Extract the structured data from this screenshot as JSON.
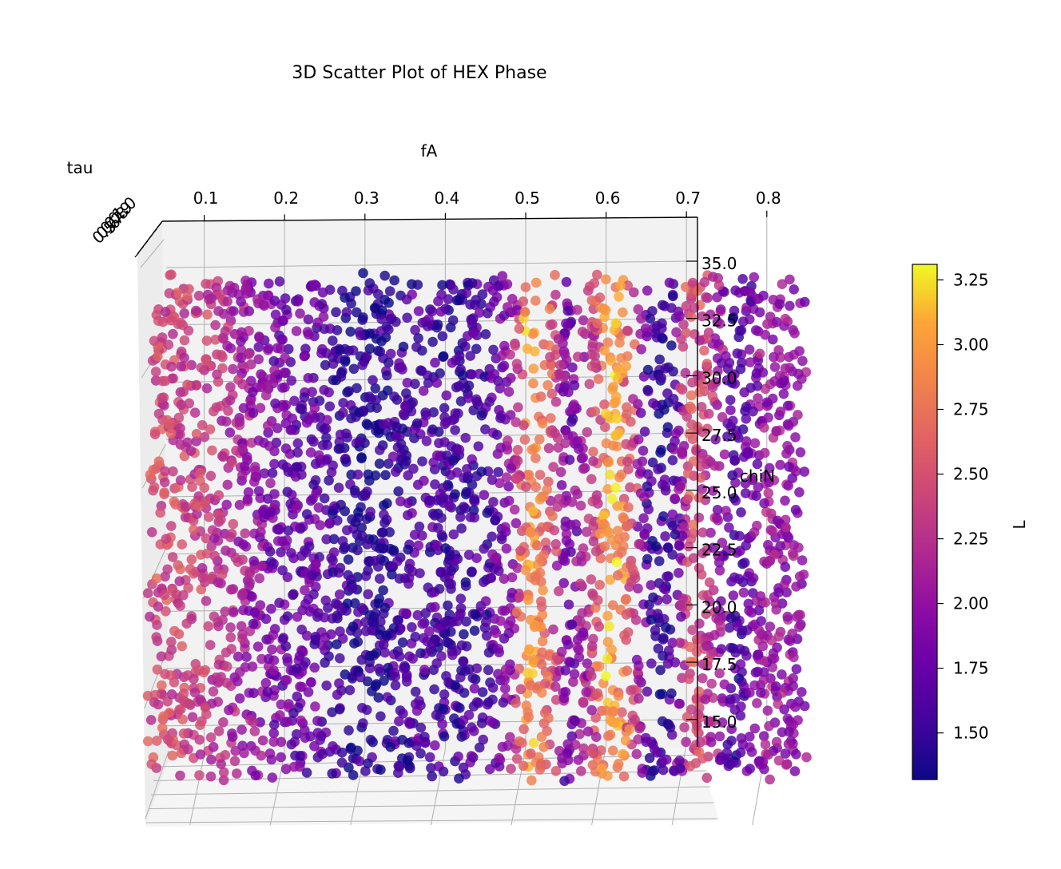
{
  "chart_data": {
    "type": "scatter",
    "projection": "3d",
    "title": "3D Scatter Plot of HEX Phase",
    "xlabel": "fA",
    "ylabel": "tau",
    "zlabel": "chiN",
    "colorbar_label": "L",
    "colormap": "plasma",
    "xlim": [
      0.05,
      0.85
    ],
    "zlim": [
      14.0,
      35.0
    ],
    "x_ticks": [
      "0.1",
      "0.2",
      "0.3",
      "0.4",
      "0.5",
      "0.6",
      "0.7",
      "0.8"
    ],
    "z_ticks": [
      "15.0",
      "17.5",
      "20.0",
      "22.5",
      "25.0",
      "27.5",
      "30.0",
      "32.5",
      "35.0"
    ],
    "y_ticks": [
      "0.5",
      "0.6",
      "0.7",
      "0.8",
      "0.9",
      "1.0"
    ],
    "colorbar_ticks": [
      "1.50",
      "1.75",
      "2.00",
      "2.25",
      "2.50",
      "2.75",
      "3.00",
      "3.25"
    ],
    "colorbar_range": [
      1.32,
      3.31
    ],
    "grid": true,
    "colorbar_placement": "right",
    "point_count": 3500,
    "L_profile_by_fA": [
      {
        "fA": 0.05,
        "L": 2.45
      },
      {
        "fA": 0.1,
        "L": 2.35
      },
      {
        "fA": 0.13,
        "L": 2.25
      },
      {
        "fA": 0.16,
        "L": 2.05
      },
      {
        "fA": 0.2,
        "L": 1.78
      },
      {
        "fA": 0.25,
        "L": 1.72
      },
      {
        "fA": 0.28,
        "L": 1.5
      },
      {
        "fA": 0.32,
        "L": 1.42
      },
      {
        "fA": 0.35,
        "L": 1.55
      },
      {
        "fA": 0.38,
        "L": 1.65
      },
      {
        "fA": 0.42,
        "L": 1.5
      },
      {
        "fA": 0.46,
        "L": 1.62
      },
      {
        "fA": 0.49,
        "L": 2.0
      },
      {
        "fA": 0.51,
        "L": 3.05
      },
      {
        "fA": 0.53,
        "L": 2.7
      },
      {
        "fA": 0.56,
        "L": 1.75
      },
      {
        "fA": 0.59,
        "L": 2.35
      },
      {
        "fA": 0.61,
        "L": 3.1
      },
      {
        "fA": 0.63,
        "L": 2.8
      },
      {
        "fA": 0.66,
        "L": 1.5
      },
      {
        "fA": 0.69,
        "L": 1.55
      },
      {
        "fA": 0.71,
        "L": 2.6
      },
      {
        "fA": 0.74,
        "L": 2.15
      },
      {
        "fA": 0.77,
        "L": 1.55
      },
      {
        "fA": 0.8,
        "L": 2.05
      },
      {
        "fA": 0.83,
        "L": 2.0
      },
      {
        "fA": 0.85,
        "L": 2.0
      }
    ]
  }
}
